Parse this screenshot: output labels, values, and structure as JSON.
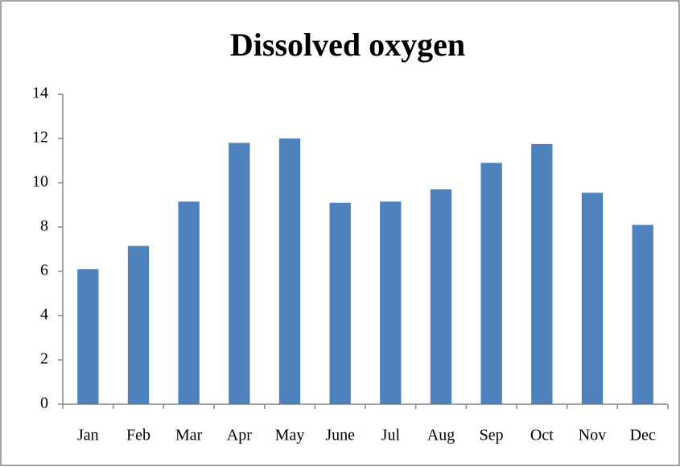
{
  "chart_data": {
    "type": "bar",
    "title": "Dissolved oxygen",
    "categories": [
      "Jan",
      "Feb",
      "Mar",
      "Apr",
      "May",
      "June",
      "Jul",
      "Aug",
      "Sep",
      "Oct",
      "Nov",
      "Dec"
    ],
    "values": [
      6.1,
      7.15,
      9.15,
      11.8,
      12.0,
      9.1,
      9.15,
      9.7,
      10.9,
      11.75,
      9.55,
      8.1
    ],
    "color": "#4f81bd",
    "ylim": [
      0,
      14
    ],
    "yticks": [
      0,
      2,
      4,
      6,
      8,
      10,
      12,
      14
    ],
    "grid": false
  }
}
